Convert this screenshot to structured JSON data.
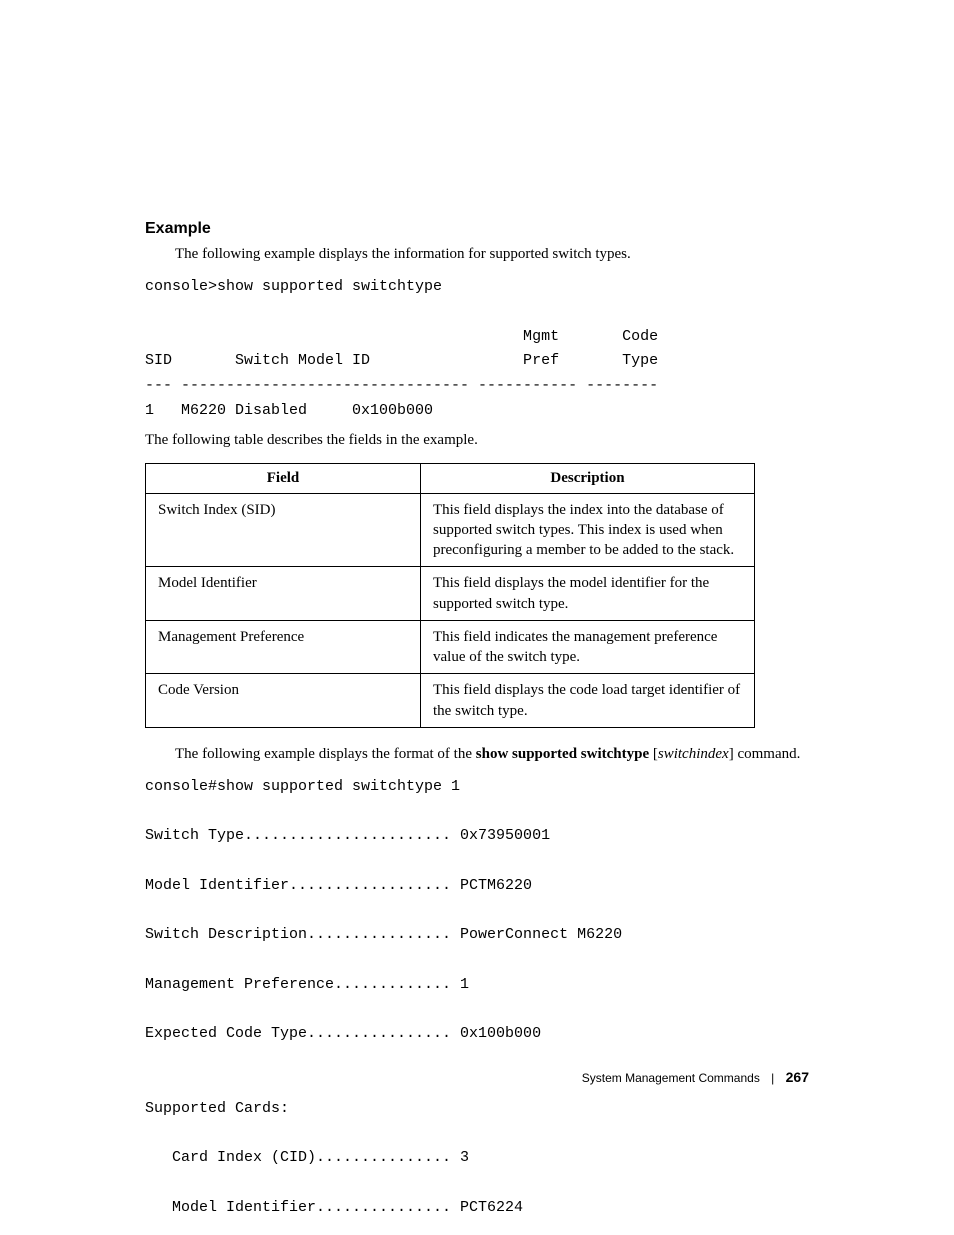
{
  "heading": "Example",
  "intro_text": "The following example displays the information for supported switch types.",
  "console_block_1": "console>show supported switchtype\n\n                                          Mgmt       Code\nSID       Switch Model ID                 Pref       Type\n--- -------------------------------- ----------- --------\n1   M6220 Disabled     0x100b000",
  "table_intro": "The following table describes the fields in the example.",
  "table": {
    "columns": [
      "Field",
      "Description"
    ],
    "rows": [
      [
        "Switch Index (SID)",
        "This field displays the index into the database of supported switch types. This index is used when preconfiguring a member to be added to the stack."
      ],
      [
        "Model Identifier",
        "This field displays the model identifier for the supported switch type."
      ],
      [
        "Management Preference",
        "This field indicates the management preference value of the switch type."
      ],
      [
        "Code Version",
        "This field displays the code load target identifier of the switch type."
      ]
    ]
  },
  "para2_pre": "The following example displays the format of the ",
  "para2_cmd": "show supported switchtype",
  "para2_arg": "switchindex",
  "para2_post": " command.",
  "console_block_2": "console#show supported switchtype 1\n\nSwitch Type....................... 0x73950001\n\nModel Identifier.................. PCTM6220\n\nSwitch Description................ PowerConnect M6220\n\nManagement Preference............. 1\n\nExpected Code Type................ 0x100b000\n\n\nSupported Cards:\n\n   Card Index (CID)............... 3\n\n   Model Identifier............... PCT6224",
  "footer_section": "System Management Commands",
  "footer_page": "267"
}
